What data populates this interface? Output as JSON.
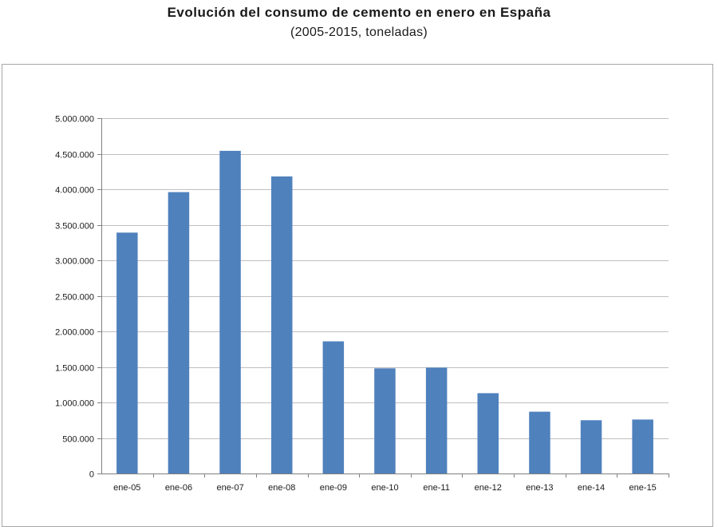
{
  "header": {
    "title": "Evolución del consumo de cemento en enero en España",
    "subtitle": "(2005-2015, toneladas)"
  },
  "colors": {
    "bar": "#4f81bd",
    "gridline": "#bfbfbf",
    "axis": "#808080"
  },
  "chart_data": {
    "type": "bar",
    "title": "Evolución del consumo de cemento en enero en España",
    "subtitle": "(2005-2015, toneladas)",
    "categories": [
      "ene-05",
      "ene-06",
      "ene-07",
      "ene-08",
      "ene-09",
      "ene-10",
      "ene-11",
      "ene-12",
      "ene-13",
      "ene-14",
      "ene-15"
    ],
    "values": [
      3390000,
      3960000,
      4540000,
      4180000,
      1860000,
      1480000,
      1490000,
      1130000,
      870000,
      750000,
      760000
    ],
    "ylim": [
      0,
      5000000
    ],
    "yticks": [
      0,
      500000,
      1000000,
      1500000,
      2000000,
      2500000,
      3000000,
      3500000,
      4000000,
      4500000,
      5000000
    ],
    "ytick_labels": [
      "0",
      "500.000",
      "1.000.000",
      "1.500.000",
      "2.000.000",
      "2.500.000",
      "3.000.000",
      "3.500.000",
      "4.000.000",
      "4.500.000",
      "5.000.000"
    ],
    "xlabel": "",
    "ylabel": "",
    "grid": true,
    "legend": "none"
  }
}
